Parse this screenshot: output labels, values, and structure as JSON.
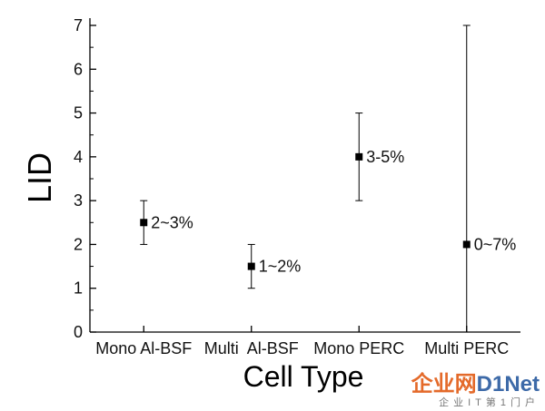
{
  "chart_data": {
    "type": "scatter",
    "xlabel": "Cell Type",
    "ylabel": "LID",
    "ylim": [
      0,
      7
    ],
    "yticks": [
      0,
      1,
      2,
      3,
      4,
      5,
      6,
      7
    ],
    "categories": [
      "Mono Al-BSF",
      "Multi  Al-BSF",
      "Mono PERC",
      "Multi PERC"
    ],
    "series": [
      {
        "points": [
          {
            "category": "Mono Al-BSF",
            "y": 2.5,
            "low": 2.0,
            "high": 3.0,
            "label": "2~3%"
          },
          {
            "category": "Multi  Al-BSF",
            "y": 1.5,
            "low": 1.0,
            "high": 2.0,
            "label": "1~2%"
          },
          {
            "category": "Mono PERC",
            "y": 4.0,
            "low": 3.0,
            "high": 5.0,
            "label": "3-5%"
          },
          {
            "category": "Multi PERC",
            "y": 2.0,
            "low": 0.0,
            "high": 7.0,
            "label": "0~7%"
          }
        ]
      }
    ],
    "grid": false,
    "marker_color": "#000000"
  },
  "watermark": {
    "main_a": "企业网",
    "main_b": "D1Net",
    "sub": "企业IT第1门户"
  }
}
